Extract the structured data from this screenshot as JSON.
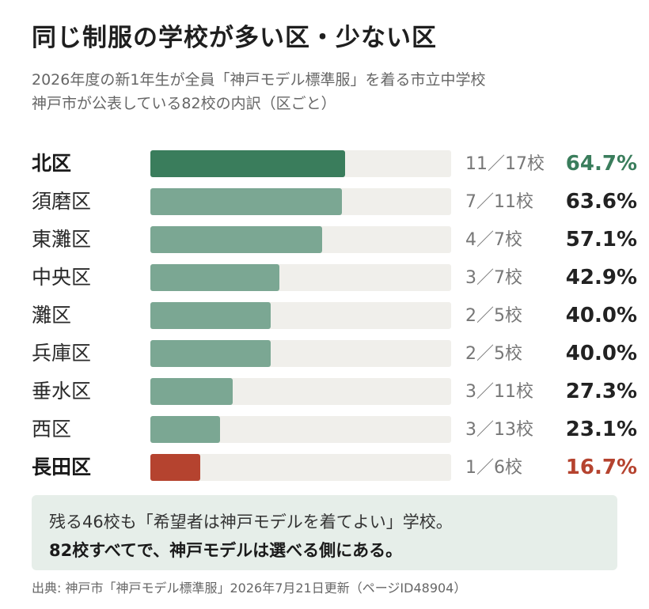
{
  "title": "同じ制服の学校が多い区・少ない区",
  "subtitle_lines": [
    "2026年度の新1年生が全員「神戸モデル標準服」を着る市立中学校",
    "神戸市が公表している82校の内訳（区ごと）"
  ],
  "colors": {
    "highlight_high": "#3a7d5c",
    "normal_bar": "#7ba793",
    "highlight_low": "#b5432f",
    "track": "#f0efeb",
    "note_bg": "#e6eee9"
  },
  "chart_data": {
    "type": "bar",
    "orientation": "horizontal",
    "xlim": [
      0,
      100
    ],
    "unit": "%",
    "categories": [
      "北区",
      "須磨区",
      "東灘区",
      "中央区",
      "灘区",
      "兵庫区",
      "垂水区",
      "西区",
      "長田区"
    ],
    "values": [
      64.7,
      63.6,
      57.1,
      42.9,
      40.0,
      40.0,
      27.3,
      23.1,
      16.7
    ],
    "value_labels": [
      "64.7%",
      "63.6%",
      "57.1%",
      "42.9%",
      "40.0%",
      "40.0%",
      "27.3%",
      "23.1%",
      "16.7%"
    ],
    "count_labels": [
      "11／17校",
      "7／11校",
      "4／7校",
      "3／7校",
      "2／5校",
      "2／5校",
      "3／11校",
      "3／13校",
      "1／6校"
    ],
    "highlight": [
      "high",
      "",
      "",
      "",
      "",
      "",
      "",
      "",
      "low"
    ]
  },
  "note": {
    "line1": "残る46校も「希望者は神戸モデルを着てよい」学校。",
    "line2": "82校すべてで、神戸モデルは選べる側にある。"
  },
  "source": "出典: 神戸市「神戸モデル標準服」2026年7月21日更新（ページID48904）"
}
